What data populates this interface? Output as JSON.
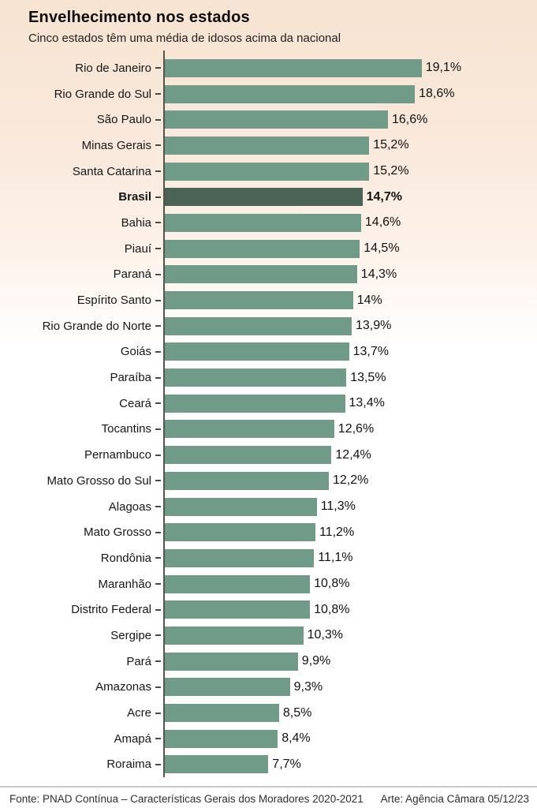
{
  "header": {
    "title": "Envelhecimento nos estados",
    "subtitle": "Cinco estados têm uma média de idosos acima da nacional"
  },
  "chart_data": {
    "type": "bar",
    "orientation": "horizontal",
    "title": "Envelhecimento nos estados",
    "subtitle": "Cinco estados têm uma média de idosos acima da nacional",
    "xlabel": "",
    "ylabel": "",
    "unit": "%",
    "xlim": [
      0,
      20
    ],
    "grid": false,
    "legend": "none",
    "categories": [
      "Rio de Janeiro",
      "Rio Grande do Sul",
      "São Paulo",
      "Minas Gerais",
      "Santa Catarina",
      "Brasil",
      "Bahia",
      "Piauí",
      "Paraná",
      "Espírito Santo",
      "Rio Grande do Norte",
      "Goiás",
      "Paraíba",
      "Ceará",
      "Tocantins",
      "Pernambuco",
      "Mato Grosso do Sul",
      "Alagoas",
      "Mato Grosso",
      "Rondônia",
      "Maranhão",
      "Distrito Federal",
      "Sergipe",
      "Pará",
      "Amazonas",
      "Acre",
      "Amapá",
      "Roraima"
    ],
    "values": [
      19.1,
      18.6,
      16.6,
      15.2,
      15.2,
      14.7,
      14.6,
      14.5,
      14.3,
      14.0,
      13.9,
      13.7,
      13.5,
      13.4,
      12.6,
      12.4,
      12.2,
      11.3,
      11.2,
      11.1,
      10.8,
      10.8,
      10.3,
      9.9,
      9.3,
      8.5,
      8.4,
      7.7
    ],
    "value_labels": [
      "19,1%",
      "18,6%",
      "16,6%",
      "15,2%",
      "15,2%",
      "14,7%",
      "14,6%",
      "14,5%",
      "14,3%",
      "14%",
      "13,9%",
      "13,7%",
      "13,5%",
      "13,4%",
      "12,6%",
      "12,4%",
      "12,2%",
      "11,3%",
      "11,2%",
      "11,1%",
      "10,8%",
      "10,8%",
      "10,3%",
      "9,9%",
      "9,3%",
      "8,5%",
      "8,4%",
      "7,7%"
    ],
    "highlight_category": "Brasil",
    "highlight_index": 5
  },
  "colors": {
    "bar": "#6f9b88",
    "highlight_bar": "#4a6354",
    "axis": "#55534e",
    "background_top": "#f7e3d1",
    "background_bottom": "#ffffff",
    "footer_line": "#c9c9c9"
  },
  "footer": {
    "source": "Fonte: PNAD Contínua – Características Gerais dos Moradores 2020-2021",
    "credit": "Arte: Agência Câmara 05/12/23"
  }
}
